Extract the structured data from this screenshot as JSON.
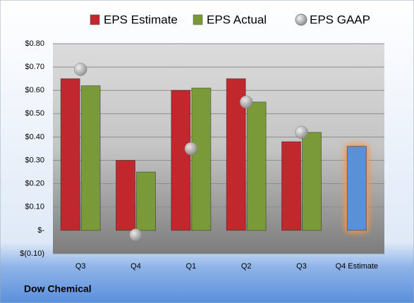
{
  "chart_data": {
    "type": "bar",
    "company": "Dow Chemical",
    "categories": [
      "Q3",
      "Q4",
      "Q1",
      "Q2",
      "Q3",
      "Q4 Estimate"
    ],
    "series": [
      {
        "name": "EPS Estimate",
        "color": "#c0282d",
        "colors": [
          "#c0282d",
          "#c0282d",
          "#c0282d",
          "#c0282d",
          "#c0282d",
          "#5b8fd6"
        ],
        "values": [
          0.65,
          0.3,
          0.6,
          0.65,
          0.38,
          0.36
        ]
      },
      {
        "name": "EPS Actual",
        "color": "#7a9a3a",
        "values": [
          0.62,
          0.25,
          0.61,
          0.55,
          0.42,
          null
        ]
      },
      {
        "name": "EPS GAAP",
        "color": "#a6a6a6",
        "marker": "circle",
        "values": [
          0.69,
          -0.02,
          0.35,
          0.55,
          0.42,
          null
        ]
      }
    ],
    "ylim": [
      -0.1,
      0.8
    ],
    "yticks": [
      {
        "value": -0.1,
        "label": "$(0.10)"
      },
      {
        "value": 0,
        "label": "$-"
      },
      {
        "value": 0.1,
        "label": "$0.10"
      },
      {
        "value": 0.2,
        "label": "$0.20"
      },
      {
        "value": 0.3,
        "label": "$0.30"
      },
      {
        "value": 0.4,
        "label": "$0.40"
      },
      {
        "value": 0.5,
        "label": "$0.50"
      },
      {
        "value": 0.6,
        "label": "$0.60"
      },
      {
        "value": 0.7,
        "label": "$0.70"
      },
      {
        "value": 0.8,
        "label": "$0.80"
      }
    ],
    "grid": true,
    "legend": "top"
  }
}
